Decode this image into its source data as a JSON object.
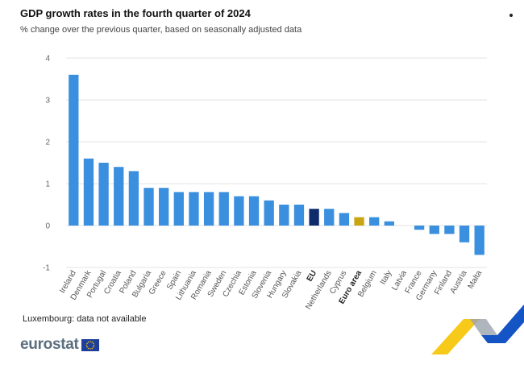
{
  "header": {
    "title": "GDP growth rates in the fourth quarter of 2024",
    "subtitle": "% change over the previous quarter, based on seasonally adjusted data"
  },
  "footer": {
    "note": "Luxembourg: data not available",
    "logo_text": "eurostat"
  },
  "colors": {
    "country": "#3a8fde",
    "eu": "#0e2b6b",
    "euro_area": "#c9a514",
    "grid": "#e3e3e3",
    "corner_yellow": "#f6c300",
    "corner_blue": "#1554c4"
  },
  "icons": {
    "menu": "more-dots-icon",
    "logo_flag": "eu-flag-icon"
  },
  "chart_data": {
    "type": "bar",
    "title": "GDP growth rates in the fourth quarter of 2024",
    "subtitle": "% change over the previous quarter, based on seasonally adjusted data",
    "xlabel": "",
    "ylabel": "",
    "ylim": [
      -1,
      4
    ],
    "yticks": [
      -1,
      0,
      1,
      2,
      3,
      4
    ],
    "grid": true,
    "categories": [
      "Ireland",
      "Denmark",
      "Portugal",
      "Croatia",
      "Poland",
      "Bulgaria",
      "Greece",
      "Spain",
      "Lithuania",
      "Romania",
      "Sweden",
      "Czechia",
      "Estonia",
      "Slovenia",
      "Hungary",
      "Slovakia",
      "EU",
      "Netherlands",
      "Cyprus",
      "Euro area",
      "Belgium",
      "Italy",
      "Latvia",
      "France",
      "Germany",
      "Finland",
      "Austria",
      "Malta"
    ],
    "values": [
      3.6,
      1.6,
      1.5,
      1.4,
      1.3,
      0.9,
      0.9,
      0.8,
      0.8,
      0.8,
      0.8,
      0.7,
      0.7,
      0.6,
      0.5,
      0.5,
      0.4,
      0.4,
      0.3,
      0.2,
      0.2,
      0.1,
      0.0,
      -0.1,
      -0.2,
      -0.2,
      -0.4,
      -0.7
    ],
    "highlight": {
      "EU": "eu",
      "Euro area": "euro_area"
    }
  }
}
